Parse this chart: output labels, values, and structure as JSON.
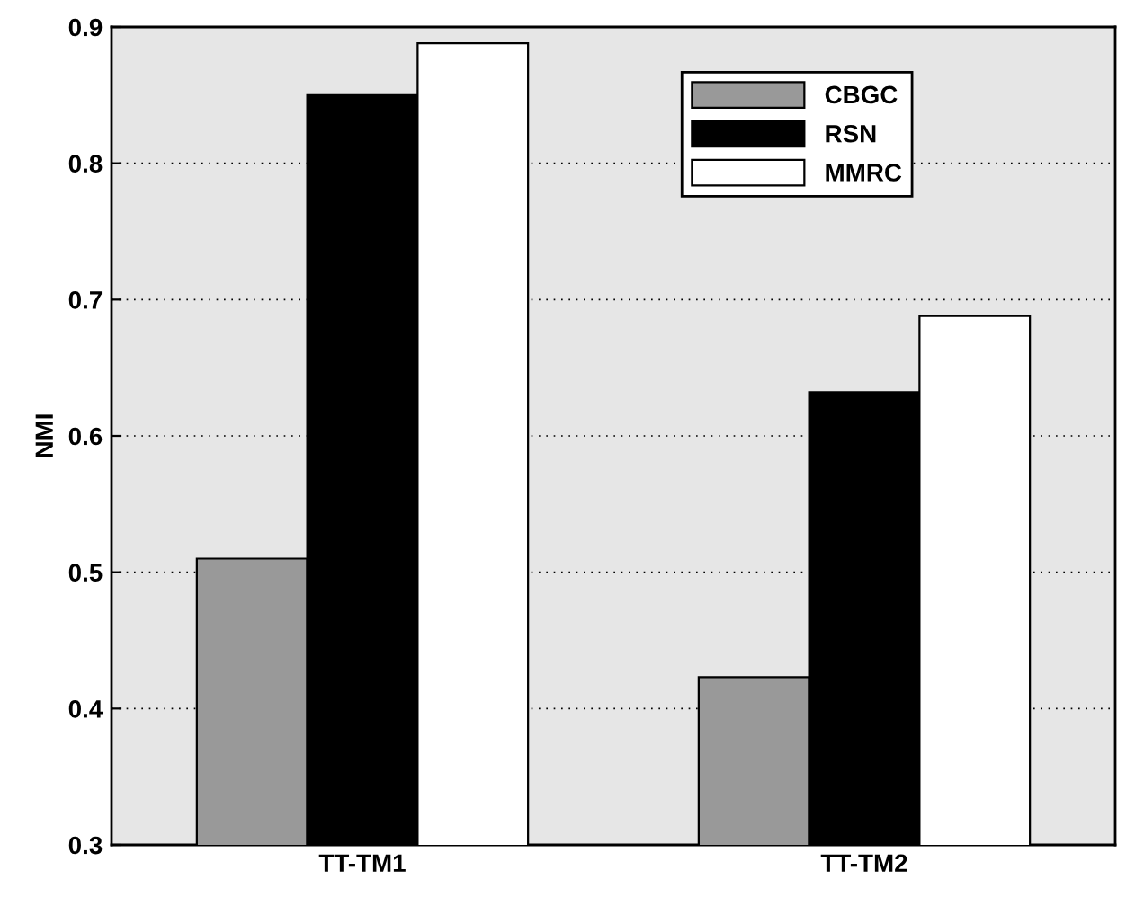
{
  "chart_data": {
    "type": "bar",
    "ylabel": "NMI",
    "categories": [
      "TT-TM1",
      "TT-TM2"
    ],
    "series": [
      {
        "name": "CBGC",
        "color": "#999999",
        "values": [
          0.51,
          0.423
        ]
      },
      {
        "name": "RSN",
        "color": "#000000",
        "values": [
          0.85,
          0.632
        ]
      },
      {
        "name": "MMRC",
        "color": "#ffffff",
        "values": [
          0.888,
          0.688
        ]
      }
    ],
    "ylim": [
      0.3,
      0.9
    ],
    "yticks": [
      0.3,
      0.4,
      0.5,
      0.6,
      0.7,
      0.8,
      0.9
    ],
    "grid": "y",
    "legend": "top right"
  }
}
